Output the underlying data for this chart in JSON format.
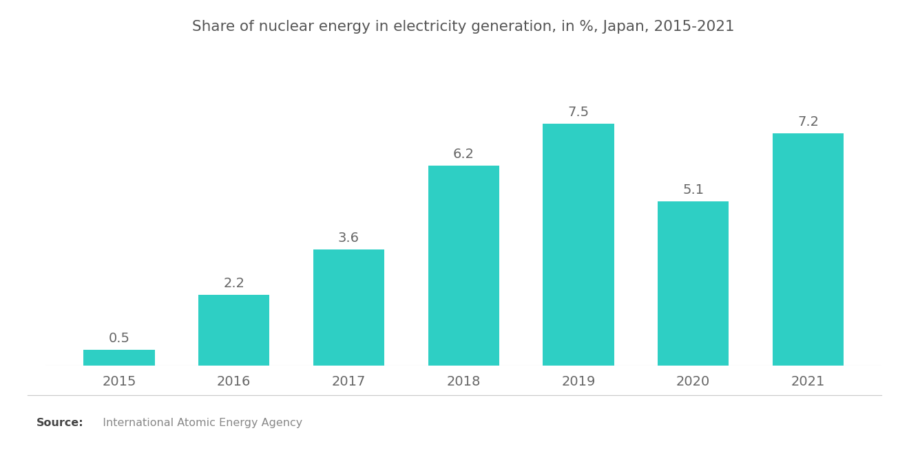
{
  "title": "Share of nuclear energy in electricity generation, in %, Japan, 2015-2021",
  "categories": [
    "2015",
    "2016",
    "2017",
    "2018",
    "2019",
    "2020",
    "2021"
  ],
  "values": [
    0.5,
    2.2,
    3.6,
    6.2,
    7.5,
    5.1,
    7.2
  ],
  "bar_color": "#2ECFC4",
  "bar_width": 0.62,
  "label_fontsize": 14,
  "title_fontsize": 15.5,
  "tick_fontsize": 14,
  "source_bold": "Source:",
  "source_text": "  International Atomic Energy Agency",
  "background_color": "#ffffff",
  "ylim": [
    0,
    9.5
  ],
  "value_label_color": "#666666",
  "axis_label_color": "#666666",
  "title_color": "#555555"
}
